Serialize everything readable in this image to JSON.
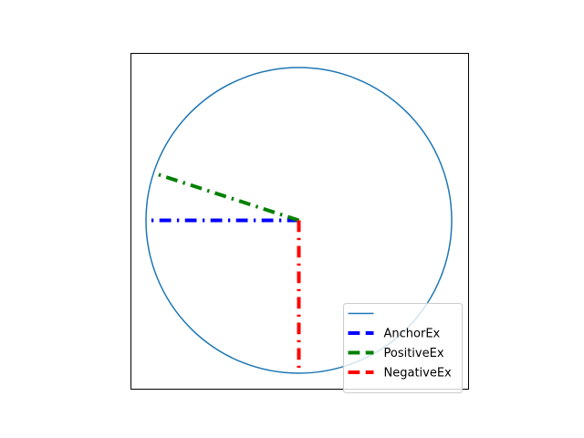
{
  "chart_data": {
    "type": "line",
    "title": "",
    "xlabel": "",
    "ylabel": "",
    "xlim": [
      -1.1,
      1.1
    ],
    "ylim": [
      -1.1,
      1.1
    ],
    "grid": false,
    "ticks_visible": false,
    "legend_placement": "lower-right",
    "series": [
      {
        "name": "",
        "kind": "circle",
        "center": [
          0,
          0
        ],
        "radius": 1.0,
        "color": "#1f77b4",
        "style": "solid"
      },
      {
        "name": "AnchorEx",
        "kind": "segment",
        "x": [
          0,
          -1.0
        ],
        "y": [
          0,
          0.0
        ],
        "color": "#0000ff",
        "style": "dashdot"
      },
      {
        "name": "PositiveEx",
        "kind": "segment",
        "x": [
          0,
          -0.95
        ],
        "y": [
          0,
          0.31
        ],
        "color": "#008000",
        "style": "dashdot"
      },
      {
        "name": "NegativeEx",
        "kind": "segment",
        "x": [
          0,
          0.0
        ],
        "y": [
          0,
          -1.0
        ],
        "color": "#ff0000",
        "style": "dashdot"
      }
    ]
  }
}
